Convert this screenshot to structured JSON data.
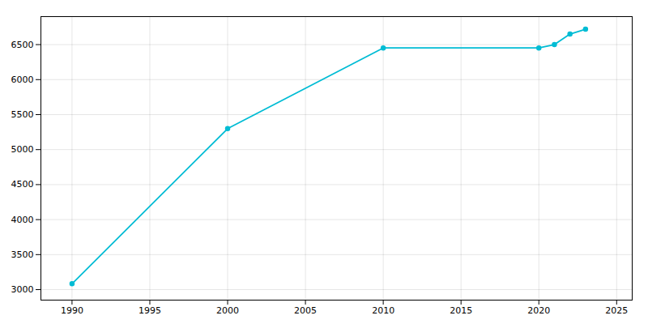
{
  "chart_data": {
    "type": "line",
    "x": [
      1990,
      2000,
      2010,
      2020,
      2021,
      2022,
      2023
    ],
    "values": [
      3083,
      5300,
      6452,
      6452,
      6500,
      6650,
      6720
    ],
    "color": "#00bcd4",
    "marker": "circle",
    "xlim": [
      1988,
      2026
    ],
    "ylim": [
      2850,
      6900
    ],
    "xticks": [
      1990,
      1995,
      2000,
      2005,
      2010,
      2015,
      2020,
      2025
    ],
    "yticks": [
      3000,
      3500,
      4000,
      4500,
      5000,
      5500,
      6000,
      6500
    ],
    "grid": true
  }
}
